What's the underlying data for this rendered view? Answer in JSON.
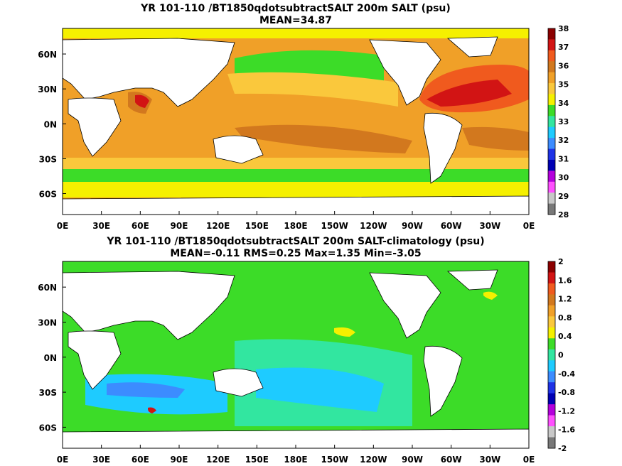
{
  "chart_data": [
    {
      "type": "heatmap",
      "title": "YR 101-110 /BT1850qdotsubtractSALT 200m SALT (psu)",
      "subtitle": "MEAN=34.87",
      "xticks": [
        "0E",
        "30E",
        "60E",
        "90E",
        "120E",
        "150E",
        "180E",
        "150W",
        "120W",
        "90W",
        "60W",
        "30W",
        "0E"
      ],
      "yticks": [
        "60N",
        "30N",
        "0N",
        "30S",
        "60S"
      ],
      "colorbar": {
        "labels": [
          "38",
          "37",
          "36",
          "35",
          "34",
          "33",
          "32",
          "31",
          "30",
          "29",
          "28"
        ],
        "colors": [
          "#8b0000",
          "#d21414",
          "#f05a1e",
          "#d2781e",
          "#f0a028",
          "#fac83c",
          "#f5f000",
          "#3cdc28",
          "#32e6a0",
          "#1ecbff",
          "#3c8cff",
          "#1e32e6",
          "#0000b4",
          "#b400dc",
          "#ff50ff",
          "#c8c8c8",
          "#787878"
        ]
      }
    },
    {
      "type": "heatmap",
      "title": "YR 101-110 /BT1850qdotsubtractSALT 200m SALT-climatology (psu)",
      "subtitle": "MEAN=-0.11   RMS=0.25   Max=1.35   Min=-3.05",
      "xticks": [
        "0E",
        "30E",
        "60E",
        "90E",
        "120E",
        "150E",
        "180E",
        "150W",
        "120W",
        "90W",
        "60W",
        "30W",
        "0E"
      ],
      "yticks": [
        "60N",
        "30N",
        "0N",
        "30S",
        "60S"
      ],
      "colorbar": {
        "labels": [
          "2",
          "1.6",
          "1.2",
          "0.8",
          "0.4",
          "0",
          "-0.4",
          "-0.8",
          "-1.2",
          "-1.6",
          "-2"
        ],
        "colors": [
          "#8b0000",
          "#d21414",
          "#f05a1e",
          "#d2781e",
          "#f0a028",
          "#fac83c",
          "#f5f000",
          "#3cdc28",
          "#32e6a0",
          "#1ecbff",
          "#3c8cff",
          "#1e32e6",
          "#0000b4",
          "#b400dc",
          "#ff50ff",
          "#c8c8c8",
          "#787878"
        ]
      }
    }
  ]
}
